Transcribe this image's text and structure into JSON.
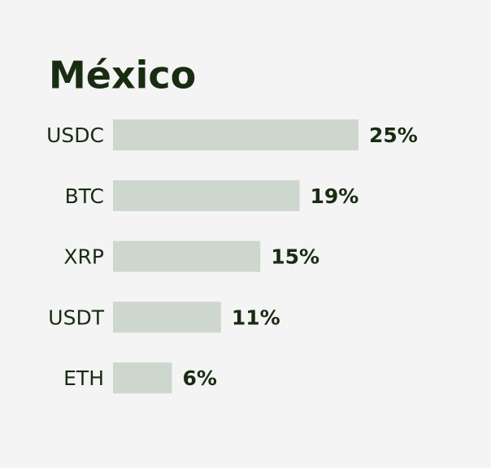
{
  "chart_data": {
    "type": "bar",
    "orientation": "horizontal",
    "title": "México",
    "categories": [
      "USDC",
      "BTC",
      "XRP",
      "USDT",
      "ETH"
    ],
    "values": [
      25,
      19,
      15,
      11,
      6
    ],
    "value_labels": [
      "25%",
      "19%",
      "15%",
      "11%",
      "6%"
    ],
    "color": "#cdd7cd"
  }
}
